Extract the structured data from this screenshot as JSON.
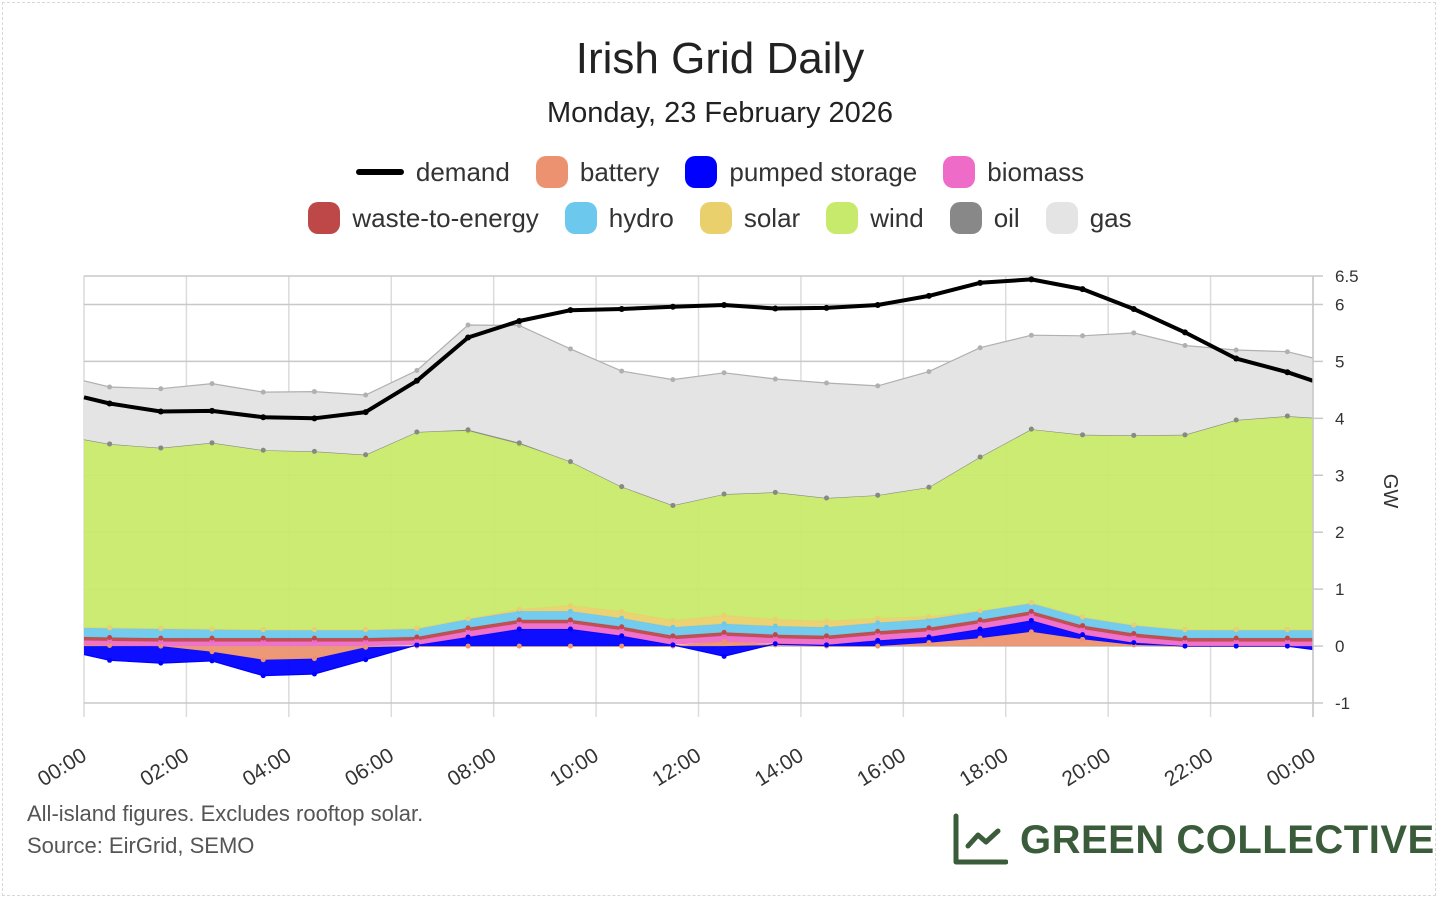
{
  "header": {
    "title": "Irish Grid Daily",
    "subtitle": "Monday, 23 February 2026"
  },
  "legend": [
    {
      "key": "demand",
      "label": "demand",
      "color": "#000000",
      "kind": "line"
    },
    {
      "key": "battery",
      "label": "battery",
      "color": "#ec9270"
    },
    {
      "key": "pumped",
      "label": "pumped storage",
      "color": "#0000ff"
    },
    {
      "key": "biomass",
      "label": "biomass",
      "color": "#ee6cc8"
    },
    {
      "key": "waste",
      "label": "waste-to-energy",
      "color": "#be4848"
    },
    {
      "key": "hydro",
      "label": "hydro",
      "color": "#6cc8ec"
    },
    {
      "key": "solar",
      "label": "solar",
      "color": "#ead06c"
    },
    {
      "key": "wind",
      "label": "wind",
      "color": "#c8ea6c"
    },
    {
      "key": "oil",
      "label": "oil",
      "color": "#888888"
    },
    {
      "key": "gas",
      "label": "gas",
      "color": "#e4e4e4"
    }
  ],
  "chart_data": {
    "type": "area",
    "stacked": true,
    "title": "Irish Grid Daily",
    "subtitle": "Monday, 23 February 2026",
    "xlabel": "",
    "ylabel": "GW",
    "ylim": [
      -1,
      6.5
    ],
    "yticks": [
      "-1",
      "0",
      "1",
      "2",
      "3",
      "4",
      "5",
      "6",
      "6.5"
    ],
    "ytick_values": [
      -1,
      0,
      1,
      2,
      3,
      4,
      5,
      6,
      6.5
    ],
    "xticks": [
      "00:00",
      "02:00",
      "04:00",
      "06:00",
      "08:00",
      "10:00",
      "12:00",
      "14:00",
      "16:00",
      "18:00",
      "20:00",
      "22:00",
      "00:00"
    ],
    "xtick_hours": [
      0,
      2,
      4,
      6,
      8,
      10,
      12,
      14,
      16,
      18,
      20,
      22,
      24
    ],
    "grid": true,
    "legend_position": "top",
    "x_hours": [
      0,
      0.5,
      1.5,
      2.5,
      3.5,
      4.5,
      5.5,
      6.5,
      7.5,
      8.5,
      9.5,
      10.5,
      11.5,
      12.5,
      13.5,
      14.5,
      15.5,
      16.5,
      17.5,
      18.5,
      19.5,
      20.5,
      21.5,
      22.5,
      23.5,
      24
    ],
    "series": [
      {
        "name": "battery",
        "key": "battery",
        "values": [
          0.02,
          0.01,
          0,
          -0.1,
          -0.24,
          -0.22,
          -0.02,
          0,
          0,
          0,
          0,
          0,
          0,
          0.08,
          0.02,
          0,
          0,
          0.06,
          0.14,
          0.25,
          0.12,
          0.02,
          0,
          0,
          0,
          0
        ]
      },
      {
        "name": "pumped storage",
        "key": "pumped",
        "values": [
          -0.15,
          -0.25,
          -0.3,
          -0.16,
          -0.28,
          -0.27,
          -0.22,
          0.02,
          0.16,
          0.3,
          0.3,
          0.18,
          0.02,
          -0.18,
          0.02,
          0.02,
          0.1,
          0.1,
          0.16,
          0.2,
          0.08,
          0.04,
          0,
          0,
          0,
          -0.06
        ]
      },
      {
        "name": "biomass",
        "key": "biomass",
        "values": [
          0.08,
          0.08,
          0.08,
          0.08,
          0.08,
          0.08,
          0.08,
          0.08,
          0.1,
          0.1,
          0.1,
          0.1,
          0.1,
          0.1,
          0.1,
          0.1,
          0.1,
          0.1,
          0.1,
          0.1,
          0.1,
          0.1,
          0.08,
          0.08,
          0.08,
          0.08
        ]
      },
      {
        "name": "waste-to-energy",
        "key": "waste",
        "values": [
          0.06,
          0.06,
          0.06,
          0.06,
          0.06,
          0.06,
          0.06,
          0.06,
          0.06,
          0.06,
          0.06,
          0.06,
          0.06,
          0.06,
          0.06,
          0.06,
          0.06,
          0.06,
          0.06,
          0.06,
          0.06,
          0.06,
          0.06,
          0.06,
          0.06,
          0.06
        ]
      },
      {
        "name": "hydro",
        "key": "hydro",
        "values": [
          0.17,
          0.17,
          0.17,
          0.16,
          0.15,
          0.15,
          0.15,
          0.15,
          0.15,
          0.15,
          0.15,
          0.15,
          0.15,
          0.15,
          0.15,
          0.15,
          0.15,
          0.15,
          0.15,
          0.15,
          0.15,
          0.15,
          0.15,
          0.15,
          0.15,
          0.15
        ]
      },
      {
        "name": "solar",
        "key": "solar",
        "values": [
          0,
          0,
          0,
          0,
          0,
          0,
          0,
          0,
          0.01,
          0.04,
          0.1,
          0.12,
          0.12,
          0.15,
          0.12,
          0.11,
          0.08,
          0.05,
          0.01,
          0,
          0,
          0,
          0,
          0,
          0,
          0
        ]
      },
      {
        "name": "wind",
        "key": "wind",
        "values": [
          3.3,
          3.23,
          3.17,
          3.27,
          3.15,
          3.13,
          3.07,
          3.45,
          3.3,
          2.9,
          2.53,
          2.19,
          2.02,
          2.13,
          2.23,
          2.16,
          2.16,
          2.27,
          2.7,
          3.05,
          3.2,
          3.33,
          3.42,
          3.68,
          3.75,
          3.72
        ]
      },
      {
        "name": "oil",
        "key": "oil",
        "values": [
          0,
          0,
          0,
          0,
          0,
          0,
          0,
          0,
          0.02,
          0.02,
          0,
          0,
          0,
          0,
          0,
          0,
          0,
          0,
          0,
          0,
          0,
          0,
          0,
          0,
          0,
          0
        ]
      },
      {
        "name": "gas",
        "key": "gas",
        "values": [
          1.03,
          1.0,
          1.04,
          1.04,
          1.02,
          1.05,
          1.05,
          1.08,
          1.84,
          2.06,
          1.98,
          2.03,
          2.21,
          2.13,
          1.99,
          2.02,
          1.92,
          2.03,
          1.92,
          1.65,
          1.74,
          1.8,
          1.57,
          1.23,
          1.13,
          1.05
        ]
      },
      {
        "name": "demand",
        "key": "demand",
        "type": "line",
        "values": [
          4.37,
          4.26,
          4.12,
          4.13,
          4.02,
          4.0,
          4.11,
          4.66,
          5.42,
          5.71,
          5.9,
          5.92,
          5.96,
          5.99,
          5.93,
          5.94,
          5.99,
          6.15,
          6.38,
          6.44,
          6.27,
          5.92,
          5.51,
          5.05,
          4.81,
          4.66
        ]
      }
    ]
  },
  "footer": {
    "note": "All-island figures. Excludes rooftop solar.",
    "source": "Source: EirGrid, SEMO",
    "brand": "GREEN COLLECTIVE"
  }
}
